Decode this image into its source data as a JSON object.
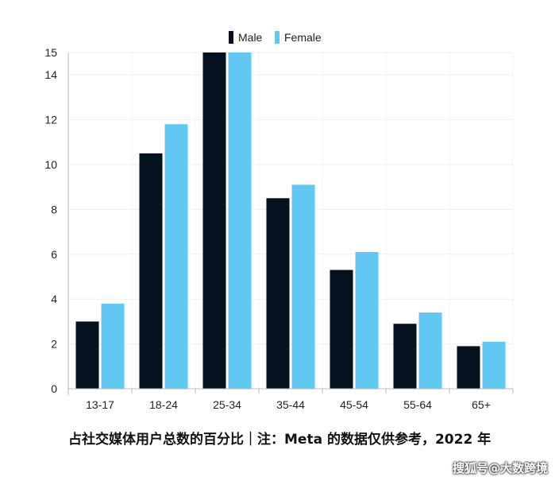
{
  "chart_data": {
    "type": "bar",
    "categories": [
      "13-17",
      "18-24",
      "25-34",
      "35-44",
      "45-54",
      "55-64",
      "65+"
    ],
    "series": [
      {
        "name": "Male",
        "color": "#06111f",
        "values": [
          3.0,
          10.5,
          15.0,
          8.5,
          5.3,
          2.9,
          1.9
        ]
      },
      {
        "name": "Female",
        "color": "#62c8f1",
        "values": [
          3.8,
          11.8,
          15.0,
          9.1,
          6.1,
          3.4,
          2.1
        ]
      }
    ],
    "y_ticks": [
      0,
      2,
      4,
      6,
      8,
      10,
      12,
      14,
      15
    ],
    "ylim": [
      0,
      15
    ],
    "grid": true,
    "legend_position": "top-center",
    "title": "",
    "xlabel": "",
    "ylabel": ""
  },
  "caption": "占社交媒体用户总数的百分比｜注：Meta 的数据仅供参考，2022 年",
  "watermark": "搜狐号@大数跨境"
}
